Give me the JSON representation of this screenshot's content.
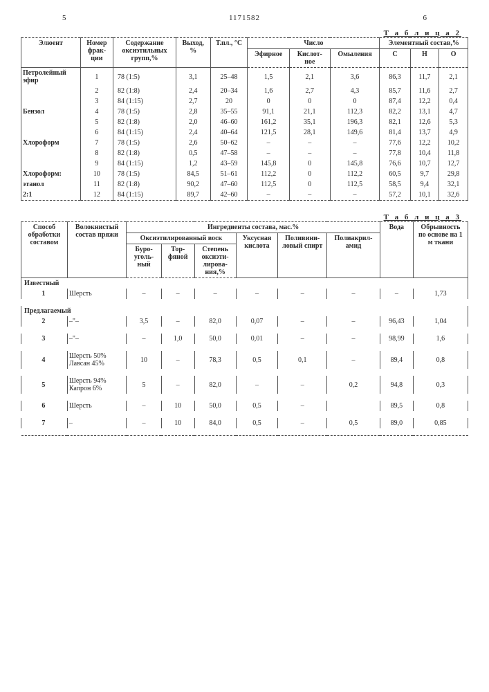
{
  "page": {
    "left_num": "5",
    "doc_num": "1171582",
    "right_num": "6"
  },
  "table2": {
    "caption": "Т а б л и ц а  2",
    "headers": {
      "eluent": "Элюент",
      "frac_no": "Номер фрак-ции",
      "oxo": "Содержание оксиэтильных групп,%",
      "yield": "Выход, %",
      "tmelt": "Т.пл., °C",
      "chislo": "Число",
      "efirnoe": "Эфирное",
      "kislot": "Кислот-ное",
      "omyl": "Омыления",
      "elem": "Элементный состав,%",
      "C": "C",
      "H": "H",
      "O": "O"
    },
    "groups": [
      {
        "label": "Петролейный эфир",
        "rows": [
          {
            "n": "1",
            "oxo": "78  (1:5)",
            "y": "3,1",
            "t": "25–48",
            "ef": "1,5",
            "ki": "2,1",
            "om": "3,6",
            "C": "86,3",
            "H": "11,7",
            "O": "2,1"
          },
          {
            "n": "2",
            "oxo": "82  (1:8)",
            "y": "2,4",
            "t": "20–34",
            "ef": "1,6",
            "ki": "2,7",
            "om": "4,3",
            "C": "85,7",
            "H": "11,6",
            "O": "2,7"
          },
          {
            "n": "3",
            "oxo": "84  (1:15)",
            "y": "2,7",
            "t": "20",
            "ef": "0",
            "ki": "0",
            "om": "0",
            "C": "87,4",
            "H": "12,2",
            "O": "0,4"
          }
        ]
      },
      {
        "label": "Бензол",
        "rows": [
          {
            "n": "4",
            "oxo": "78  (1:5)",
            "y": "2,8",
            "t": "35–55",
            "ef": "91,1",
            "ki": "21,1",
            "om": "112,3",
            "C": "82,2",
            "H": "13,1",
            "O": "4,7"
          },
          {
            "n": "5",
            "oxo": "82  (1:8)",
            "y": "2,0",
            "t": "46–60",
            "ef": "161,2",
            "ki": "35,1",
            "om": "196,3",
            "C": "82,1",
            "H": "12,6",
            "O": "5,3"
          },
          {
            "n": "6",
            "oxo": "84  (1:15)",
            "y": "2,4",
            "t": "40–64",
            "ef": "121,5",
            "ki": "28,1",
            "om": "149,6",
            "C": "81,4",
            "H": "13,7",
            "O": "4,9"
          }
        ]
      },
      {
        "label": "Хлороформ",
        "rows": [
          {
            "n": "7",
            "oxo": "78  (1:5)",
            "y": "2,6",
            "t": "50–62",
            "ef": "–",
            "ki": "–",
            "om": "–",
            "C": "77,6",
            "H": "12,2",
            "O": "10,2"
          },
          {
            "n": "8",
            "oxo": "82  (1:8)",
            "y": "0,5",
            "t": "47–58",
            "ef": "–",
            "ki": "–",
            "om": "–",
            "C": "77,8",
            "H": "10,4",
            "O": "11,8"
          },
          {
            "n": "9",
            "oxo": "84  (1:15)",
            "y": "1,2",
            "t": "43–59",
            "ef": "145,8",
            "ki": "0",
            "om": "145,8",
            "C": "76,6",
            "H": "10,7",
            "O": "12,7"
          }
        ]
      },
      {
        "label": "Хлороформ:",
        "rows": [
          {
            "n": "10",
            "oxo": "78  (1:5)",
            "y": "84,5",
            "t": "51–61",
            "ef": "112,2",
            "ki": "0",
            "om": "112,2",
            "C": "60,5",
            "H": "9,7",
            "O": "29,8"
          }
        ]
      },
      {
        "label": "этанол",
        "rows": [
          {
            "n": "11",
            "oxo": "82  (1:8)",
            "y": "90,2",
            "t": "47–60",
            "ef": "112,5",
            "ki": "0",
            "om": "112,5",
            "C": "58,5",
            "H": "9,4",
            "O": "32,1"
          }
        ]
      },
      {
        "label": "2:1",
        "rows": [
          {
            "n": "12",
            "oxo": "84  (1:15)",
            "y": "89,7",
            "t": "42–60",
            "ef": "–",
            "ki": "–",
            "om": "–",
            "C": "57,2",
            "H": "10,1",
            "O": "32,6"
          }
        ]
      }
    ]
  },
  "table3": {
    "caption": "Т а б л и ц а  3",
    "headers": {
      "method": "Способ обработки составом",
      "fiber": "Волокнистый состав пряжи",
      "ingred": "Ингредиенты состава, мас.%",
      "wax": "Оксиэтилированный воск",
      "coal": "Буро-уголь-ный",
      "peat": "Тор-фяной",
      "degree": "Степень оксиэти-лирова-ния,%",
      "acid": "Уксусная кислота",
      "pva": "Поливини-ловый спирт",
      "paa": "Полиакрил-амид",
      "water": "Вода",
      "break": "Обрывность по основе на 1 м ткани"
    },
    "sections": {
      "known": "Известный",
      "proposed": "Предлагаемый"
    },
    "rows": [
      {
        "sec": "known",
        "no": "1",
        "fiber": "Шерсть",
        "coal": "–",
        "peat": "–",
        "deg": "–",
        "acid": "–",
        "pva": "–",
        "paa": "–",
        "water": "–",
        "brk": "1,73"
      },
      {
        "sec": "proposed",
        "no": "2",
        "fiber": "–\"–",
        "coal": "3,5",
        "peat": "–",
        "deg": "82,0",
        "acid": "0,07",
        "pva": "–",
        "paa": "–",
        "water": "96,43",
        "brk": "1,04"
      },
      {
        "sec": "proposed",
        "no": "3",
        "fiber": "–\"–",
        "coal": "–",
        "peat": "1,0",
        "deg": "50,0",
        "acid": "0,01",
        "pva": "–",
        "paa": "–",
        "water": "98,99",
        "brk": "1,6"
      },
      {
        "sec": "proposed",
        "no": "4",
        "fiber": "Шерсть 50%  Лавсан 45%",
        "coal": "10",
        "peat": "–",
        "deg": "78,3",
        "acid": "0,5",
        "pva": "0,1",
        "paa": "–",
        "water": "89,4",
        "brk": "0,8"
      },
      {
        "sec": "proposed",
        "no": "5",
        "fiber": "Шерсть 94%  Капрон 6%",
        "coal": "5",
        "peat": "–",
        "deg": "82,0",
        "acid": "–",
        "pva": "–",
        "paa": "0,2",
        "water": "94,8",
        "brk": "0,3"
      },
      {
        "sec": "proposed",
        "no": "6",
        "fiber": "Шерсть",
        "coal": "–",
        "peat": "10",
        "deg": "50,0",
        "acid": "0,5",
        "pva": "–",
        "paa": "",
        "water": "89,5",
        "brk": "0,8"
      },
      {
        "sec": "proposed",
        "no": "7",
        "fiber": "–",
        "coal": "–",
        "peat": "10",
        "deg": "84,0",
        "acid": "0,5",
        "pva": "–",
        "paa": "0,5",
        "water": "89,0",
        "brk": "0,85"
      }
    ]
  }
}
